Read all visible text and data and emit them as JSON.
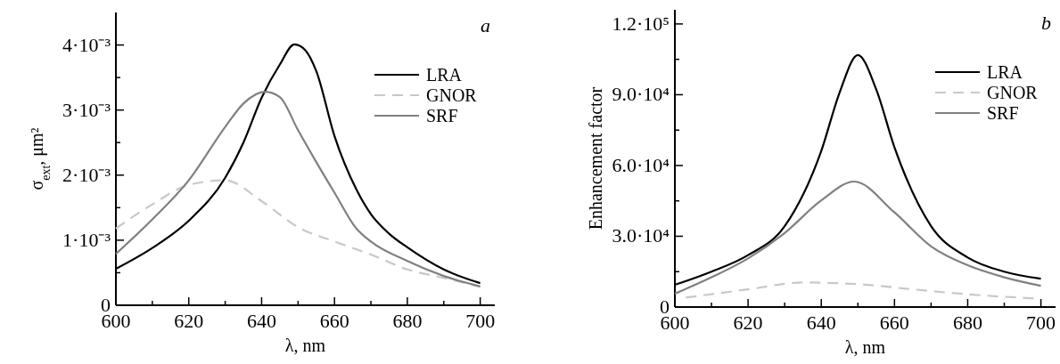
{
  "chart_data": [
    {
      "type": "line",
      "xlabel": "λ, nm",
      "ylabel": "σ$_{ext}$, μm²",
      "annotations": [
        "a"
      ],
      "legend": "top right",
      "grid": false,
      "xlim": [
        600,
        704
      ],
      "ylim": [
        0,
        0.0045
      ],
      "xticks": [
        600,
        {
          "value": 610,
          "label": null
        },
        620,
        {
          "value": 630,
          "label": null
        },
        640,
        {
          "value": 650,
          "label": null
        },
        660,
        {
          "value": 670,
          "label": null
        },
        680,
        {
          "value": 690,
          "label": null
        },
        700
      ],
      "yticks": [
        {
          "value": 0,
          "label": "0"
        },
        {
          "value": 0.0005,
          "label": null
        },
        {
          "value": 0.001,
          "label": "1·10⁻³"
        },
        {
          "value": 0.0015,
          "label": null
        },
        {
          "value": 0.002,
          "label": "2·10⁻³"
        },
        {
          "value": 0.0025,
          "label": null
        },
        {
          "value": 0.003,
          "label": "3·10⁻³"
        },
        {
          "value": 0.0035,
          "label": null
        },
        {
          "value": 0.004,
          "label": "4·10⁻³"
        }
      ],
      "series": [
        {
          "name": "LRA",
          "color": "#000000",
          "line_style": "solid",
          "x": [
            600,
            610,
            620,
            630,
            635,
            640,
            645,
            649,
            652,
            655,
            660,
            666,
            670,
            675,
            680,
            690,
            700
          ],
          "values": [
            0.00056,
            0.00088,
            0.0013,
            0.00196,
            0.0025,
            0.00319,
            0.0037,
            0.00401,
            0.00392,
            0.0036,
            0.0026,
            0.00178,
            0.0014,
            0.0011,
            0.00089,
            0.00055,
            0.00034
          ]
        },
        {
          "name": "GNOR",
          "color": "#c8c8c8",
          "line_style": "dashed",
          "x": [
            600,
            610,
            620,
            630,
            640,
            650,
            660,
            670,
            680,
            690,
            700
          ],
          "values": [
            0.00118,
            0.00155,
            0.00185,
            0.00192,
            0.0016,
            0.0012,
            0.00098,
            0.00078,
            0.00055,
            0.00042,
            0.00028
          ]
        },
        {
          "name": "SRF",
          "color": "#808080",
          "line_style": "solid",
          "x": [
            600,
            610,
            620,
            630,
            635,
            641,
            645,
            650,
            655,
            660,
            666,
            670,
            680,
            690,
            700
          ],
          "values": [
            0.00079,
            0.00132,
            0.00192,
            0.00274,
            0.0031,
            0.00328,
            0.0032,
            0.00269,
            0.0022,
            0.00173,
            0.00118,
            0.00098,
            0.00068,
            0.00045,
            0.00029
          ]
        }
      ]
    },
    {
      "type": "line",
      "xlabel": "λ, nm",
      "ylabel": "Enhancement factor",
      "annotations": [
        "b"
      ],
      "legend": "top right",
      "grid": false,
      "xlim": [
        600,
        704
      ],
      "ylim": [
        0,
        126000
      ],
      "xticks": [
        600,
        {
          "value": 610,
          "label": null
        },
        620,
        {
          "value": 630,
          "label": null
        },
        640,
        {
          "value": 650,
          "label": null
        },
        660,
        {
          "value": 670,
          "label": null
        },
        680,
        {
          "value": 690,
          "label": null
        },
        700
      ],
      "yticks": [
        {
          "value": 0,
          "label": "0"
        },
        {
          "value": 15000,
          "label": null
        },
        {
          "value": 30000,
          "label": "3.0·10⁴"
        },
        {
          "value": 45000,
          "label": null
        },
        {
          "value": 60000,
          "label": "6.0·10⁴"
        },
        {
          "value": 75000,
          "label": null
        },
        {
          "value": 90000,
          "label": "9.0·10⁴"
        },
        {
          "value": 105000,
          "label": null
        },
        {
          "value": 120000,
          "label": "1.2·10⁵"
        }
      ],
      "series": [
        {
          "name": "LRA",
          "color": "#000000",
          "line_style": "solid",
          "x": [
            600,
            610,
            620,
            630,
            640,
            645,
            650,
            655,
            660,
            670,
            680,
            690,
            700
          ],
          "values": [
            9400,
            15000,
            22000,
            34300,
            66200,
            90900,
            106800,
            92300,
            67700,
            34300,
            21000,
            15000,
            12000
          ]
        },
        {
          "name": "GNOR",
          "color": "#c8c8c8",
          "line_style": "dashed",
          "x": [
            603,
            620,
            635,
            650,
            665,
            680,
            700
          ],
          "values": [
            4000,
            7500,
            10400,
            9700,
            7500,
            5400,
            3500
          ]
        },
        {
          "name": "SRF",
          "color": "#808080",
          "line_style": "solid",
          "x": [
            600,
            610,
            620,
            630,
            640,
            649,
            660,
            670,
            680,
            690,
            700
          ],
          "values": [
            5650,
            12600,
            20600,
            31400,
            45200,
            53200,
            40100,
            25700,
            17700,
            12600,
            9000
          ]
        }
      ]
    }
  ]
}
